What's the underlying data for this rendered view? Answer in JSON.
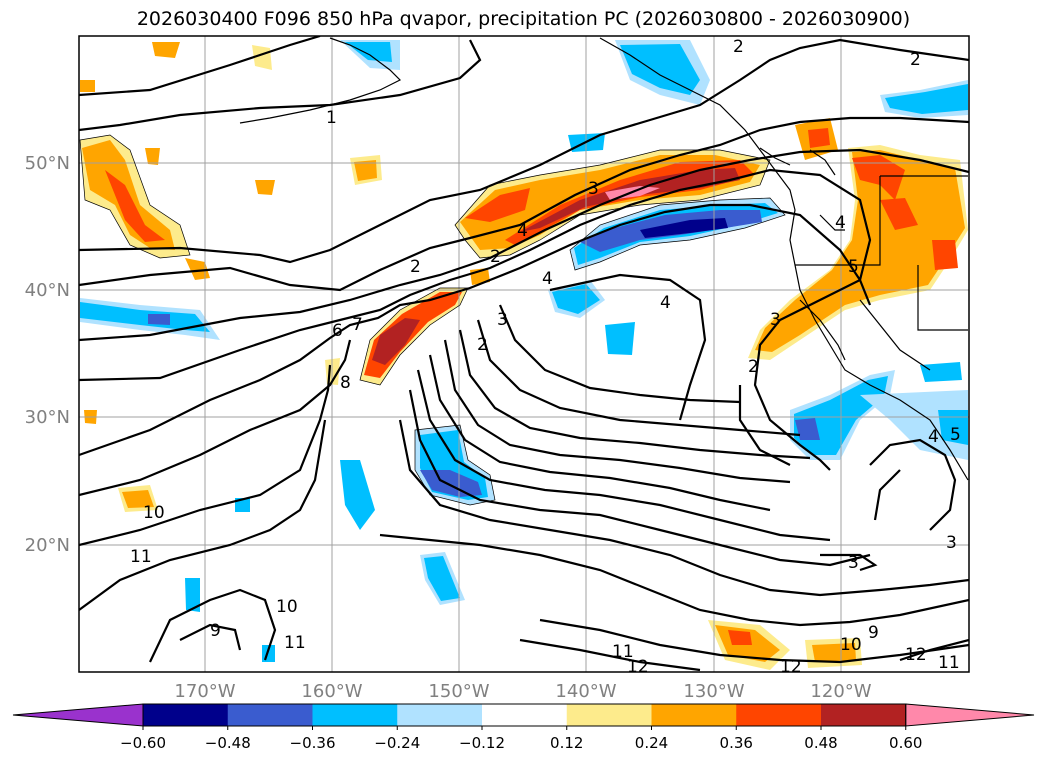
{
  "title": "2026030400 F096 850 hPa qvapor, precipitation PC (2026030800 - 2026030900)",
  "lat_labels": [
    "50°N",
    "40°N",
    "30°N",
    "20°N"
  ],
  "lon_labels": [
    "170°W",
    "160°W",
    "150°W",
    "140°W",
    "130°W",
    "120°W"
  ],
  "colorbar": {
    "ticks": [
      "−0.60",
      "−0.48",
      "−0.36",
      "−0.24",
      "−0.12",
      "0.12",
      "0.24",
      "0.36",
      "0.48",
      "0.60"
    ],
    "colors": [
      "#9a32cd",
      "#00008b",
      "#3a5ccf",
      "#00bfff",
      "#b0e2ff",
      "#ffffff",
      "#fdeb8c",
      "#ffa500",
      "#ff4500",
      "#b22222",
      "#ff88aa"
    ]
  },
  "contour_labels": [
    {
      "text": "2"
    },
    {
      "text": "2"
    },
    {
      "text": "1"
    },
    {
      "text": "3"
    },
    {
      "text": "2"
    },
    {
      "text": "4"
    },
    {
      "text": "2"
    },
    {
      "text": "4"
    },
    {
      "text": "4"
    },
    {
      "text": "3"
    },
    {
      "text": "2"
    },
    {
      "text": "6"
    },
    {
      "text": "7"
    },
    {
      "text": "8"
    },
    {
      "text": "4"
    },
    {
      "text": "5"
    },
    {
      "text": "3"
    },
    {
      "text": "2"
    },
    {
      "text": "10"
    },
    {
      "text": "11"
    },
    {
      "text": "9"
    },
    {
      "text": "10"
    },
    {
      "text": "11"
    },
    {
      "text": "3"
    },
    {
      "text": "11"
    },
    {
      "text": "12"
    },
    {
      "text": "10"
    },
    {
      "text": "9"
    },
    {
      "text": "12"
    },
    {
      "text": "11"
    },
    {
      "text": "12"
    },
    {
      "text": "3"
    },
    {
      "text": "4"
    },
    {
      "text": "5"
    }
  ]
}
